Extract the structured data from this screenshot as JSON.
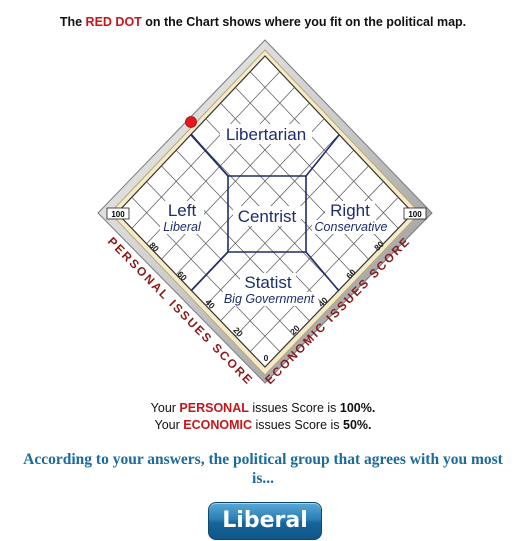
{
  "headline": {
    "pre": "The ",
    "highlight": "RED DOT",
    "post": " on the Chart shows where you fit on the political map."
  },
  "chart": {
    "regions": {
      "libertarian": "Libertarian",
      "left": "Left",
      "left_sub": "Liberal",
      "centrist": "Centrist",
      "right": "Right",
      "right_sub": "Conservative",
      "statist": "Statist",
      "statist_sub": "Big Government"
    },
    "axes": {
      "personal_label": "PERSONAL ISSUES SCORE",
      "economic_label": "ECONOMIC ISSUES SCORE",
      "personal_ticks": [
        "100",
        "80",
        "60",
        "40",
        "20"
      ],
      "economic_ticks": [
        "20",
        "40",
        "60",
        "80",
        "100"
      ],
      "origin": "0"
    },
    "marker": {
      "personal": 100,
      "economic": 50,
      "color": "#e8161d"
    }
  },
  "scores": {
    "line1_pre": "Your ",
    "line1_key": "PERSONAL",
    "line1_mid": " issues Score is ",
    "line1_val": "100%.",
    "line2_pre": "Your ",
    "line2_key": "ECONOMIC",
    "line2_mid": " issues Score is ",
    "line2_val": "50%."
  },
  "result": {
    "line1": "According to your answers, the political group that agrees with you most",
    "line2": "is..."
  },
  "button": {
    "label": "Liberal"
  },
  "colors": {
    "accent_red": "#c8151b",
    "result_blue": "#1d6a9c",
    "axis_label": "#8b1a1a"
  }
}
